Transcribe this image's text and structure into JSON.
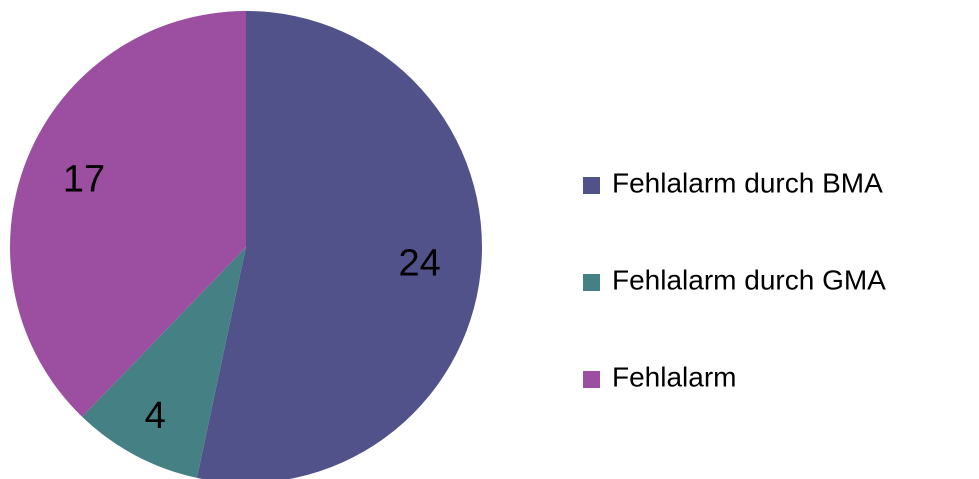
{
  "chart_data": {
    "type": "pie",
    "categories": [
      "Fehlalarm durch BMA",
      "Fehlalarm durch GMA",
      "Fehlalarm"
    ],
    "values": [
      24,
      4,
      17
    ],
    "colors": [
      "#52528a",
      "#448084",
      "#9c4fa1"
    ],
    "legend": "right"
  }
}
